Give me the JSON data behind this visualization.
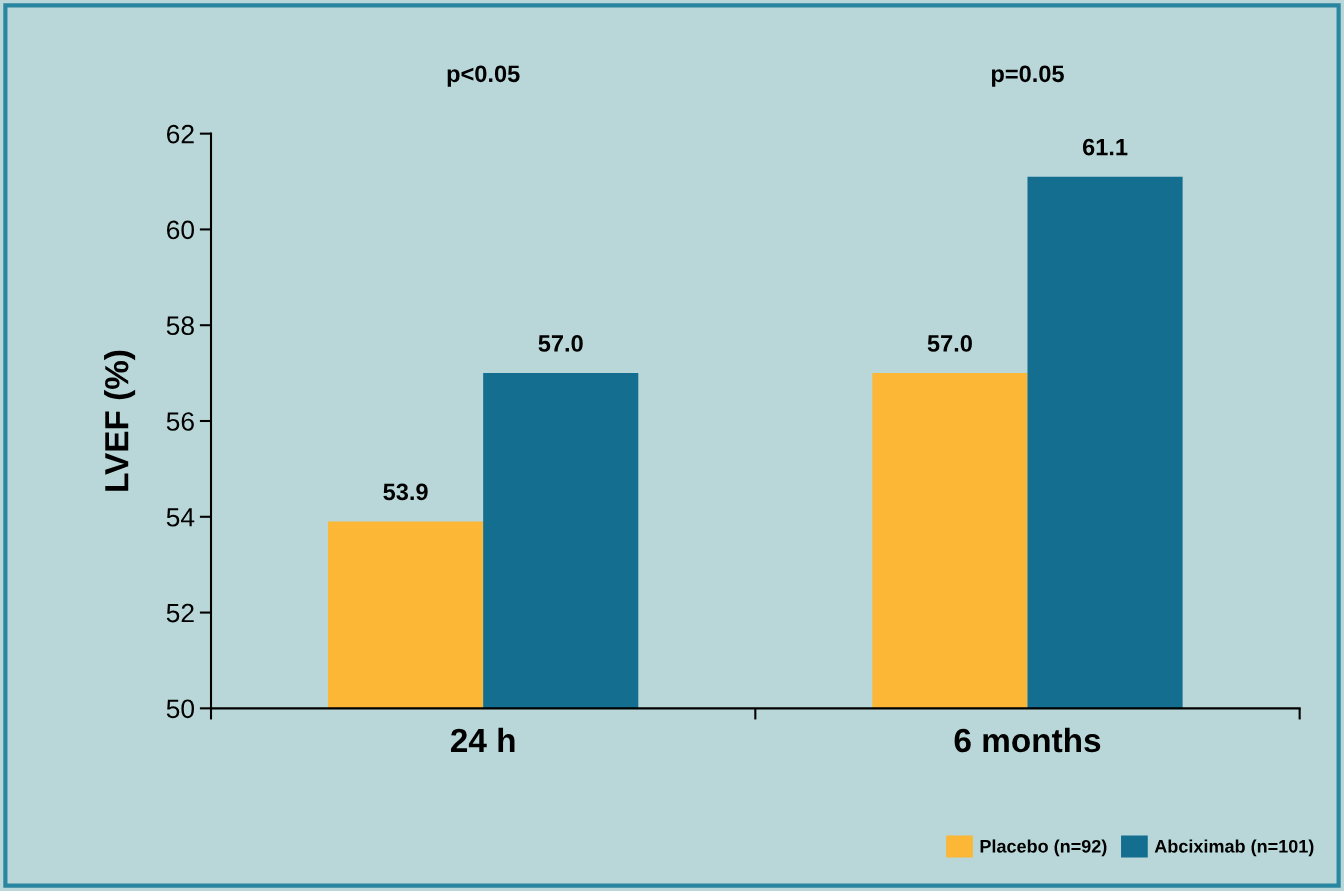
{
  "chart_data": {
    "type": "bar",
    "categories": [
      "24 h",
      "6 months"
    ],
    "series": [
      {
        "name": "Placebo (n=92)",
        "color": "#fbb735",
        "values": [
          53.9,
          57.0
        ]
      },
      {
        "name": "Abciximab (n=101)",
        "color": "#136e8f",
        "values": [
          57.0,
          61.1
        ]
      }
    ],
    "value_labels": [
      [
        "53.9",
        "57.0"
      ],
      [
        "57.0",
        "61.1"
      ]
    ],
    "ylabel": "LVEF (%)",
    "ylim": [
      50,
      62
    ],
    "yticks": [
      50,
      52,
      54,
      56,
      58,
      60,
      62
    ],
    "annotations": [
      "p<0.05",
      "p=0.05"
    ],
    "grid": false,
    "legend": "bottom right"
  }
}
